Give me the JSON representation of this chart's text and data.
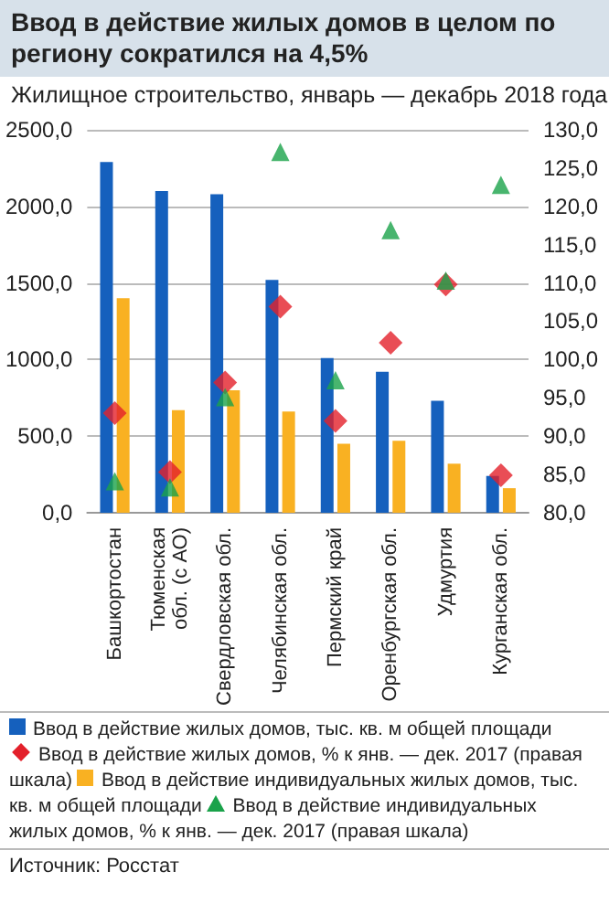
{
  "chart_data": {
    "type": "bar",
    "title": "Ввод в действие жилых домов в целом по региону сократился на 4,5%",
    "subtitle": "Жилищное строительство, январь — декабрь 2018 года",
    "categories": [
      "Башкортостан",
      "Тюменская\nобл. (с АО)",
      "Свердловская обл.",
      "Челябинская обл.",
      "Пермский край",
      "Оренбургская обл.",
      "Удмуртия",
      "Курганская обл."
    ],
    "series": [
      {
        "name": "Ввод в действие жилых домов, тыс. кв. м общей площади",
        "type": "bar",
        "color": "#1560bd",
        "values": [
          2290,
          2100,
          2080,
          1520,
          1010,
          920,
          730,
          240
        ]
      },
      {
        "name": "Ввод в действие жилых домов, % к янв. — дек. 2017 (правая шкала)",
        "type": "scatter",
        "axis": "y2",
        "marker": "diamond",
        "color": "#e3202b",
        "values": [
          93.0,
          85.3,
          97.0,
          106.9,
          92.0,
          102.2,
          109.8,
          84.9
        ]
      },
      {
        "name": "Ввод в действие индивидуальных жилых домов, тыс. кв. м общей площади",
        "type": "bar",
        "color": "#f9b122",
        "values": [
          1400,
          670,
          800,
          660,
          450,
          470,
          320,
          160
        ]
      },
      {
        "name": "Ввод в действие индивидуальных жилых домов, % к янв. — дек. 2017 (правая шкала)",
        "type": "scatter",
        "axis": "y2",
        "marker": "triangle",
        "color": "#1aa24a",
        "values": [
          84.1,
          83.3,
          95.1,
          127.1,
          97.3,
          116.9,
          110.3,
          122.8
        ]
      }
    ],
    "ylim": [
      0,
      2500
    ],
    "yticks": [
      {
        "value": 0,
        "label": "0,0"
      },
      {
        "value": 500,
        "label": "500,0"
      },
      {
        "value": 1000,
        "label": "1000,0"
      },
      {
        "value": 1500,
        "label": "1500,0"
      },
      {
        "value": 2000,
        "label": "2000,0"
      },
      {
        "value": 2500,
        "label": "2500,0"
      }
    ],
    "y2lim": [
      80,
      130
    ],
    "y2ticks": [
      {
        "value": 80,
        "label": "80,0"
      },
      {
        "value": 85,
        "label": "85,0"
      },
      {
        "value": 90,
        "label": "90,0"
      },
      {
        "value": 95,
        "label": "95,0"
      },
      {
        "value": 100,
        "label": "100,0"
      },
      {
        "value": 105,
        "label": "105,0"
      },
      {
        "value": 110,
        "label": "110,0"
      },
      {
        "value": 115,
        "label": "115,0"
      },
      {
        "value": 120,
        "label": "120,0"
      },
      {
        "value": 125,
        "label": "125,0"
      },
      {
        "value": 130,
        "label": "130,0"
      }
    ],
    "grid": "y",
    "legend": "bottom",
    "annotations": [
      "Источник: Росстат"
    ]
  }
}
